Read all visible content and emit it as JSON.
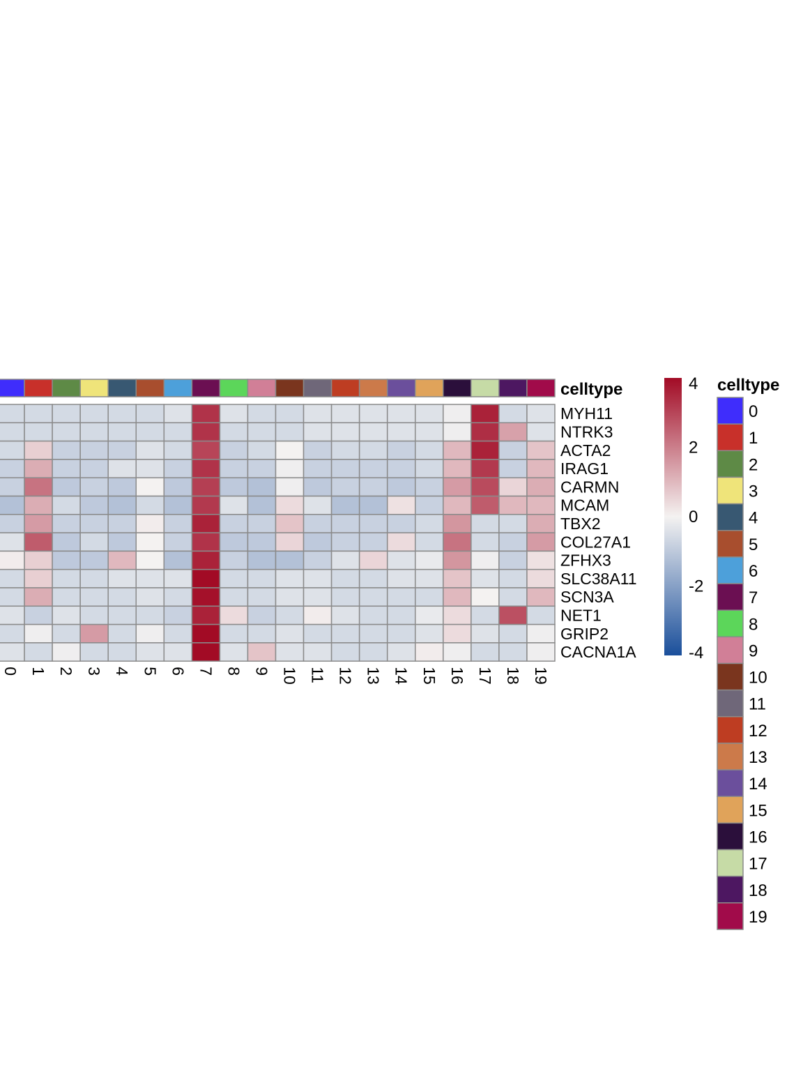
{
  "chart_data": {
    "type": "heatmap",
    "title": "",
    "annotation_label": "celltype",
    "legend_title": "celltype",
    "columns": [
      "0",
      "1",
      "2",
      "3",
      "4",
      "5",
      "6",
      "7",
      "8",
      "9",
      "10",
      "11",
      "12",
      "13",
      "14",
      "15",
      "16",
      "17",
      "18",
      "19"
    ],
    "rows": [
      "MYH11",
      "NTRK3",
      "ACTA2",
      "IRAG1",
      "CARMN",
      "MCAM",
      "TBX2",
      "COL27A1",
      "ZFHX3",
      "SLC38A11",
      "SCN3A",
      "NET1",
      "GRIP2",
      "CACNA1A"
    ],
    "values": [
      [
        -0.6,
        -0.6,
        -0.6,
        -0.6,
        -0.6,
        -0.6,
        -0.4,
        3.3,
        -0.4,
        -0.6,
        -0.6,
        -0.4,
        -0.4,
        -0.4,
        -0.4,
        -0.4,
        -0.1,
        3.6,
        -0.6,
        -0.4
      ],
      [
        -0.6,
        -0.6,
        -0.6,
        -0.6,
        -0.6,
        -0.6,
        -0.6,
        3.3,
        -0.6,
        -0.6,
        -0.6,
        -0.4,
        -0.4,
        -0.4,
        -0.4,
        -0.4,
        -0.1,
        3.4,
        1.4,
        -0.4
      ],
      [
        -0.6,
        0.6,
        -0.8,
        -0.8,
        -0.8,
        -0.4,
        -0.6,
        3.0,
        -0.8,
        -0.6,
        0.0,
        -0.8,
        -0.6,
        -0.6,
        -0.8,
        -0.6,
        1.0,
        3.6,
        -0.8,
        0.8
      ],
      [
        -0.8,
        1.2,
        -0.8,
        -0.8,
        -0.4,
        -0.4,
        -0.8,
        3.3,
        -0.8,
        -0.8,
        -0.1,
        -0.8,
        -0.8,
        -0.8,
        -0.8,
        -0.6,
        1.0,
        3.2,
        -0.8,
        1.0
      ],
      [
        -0.8,
        2.2,
        -1.0,
        -0.8,
        -1.0,
        0.0,
        -1.0,
        3.1,
        -1.0,
        -1.2,
        -0.1,
        -1.0,
        -0.8,
        -0.8,
        -1.0,
        -0.8,
        1.5,
        2.9,
        0.5,
        1.2
      ],
      [
        -1.2,
        1.2,
        -0.6,
        -1.0,
        -1.2,
        -0.6,
        -1.2,
        3.2,
        -0.4,
        -1.2,
        0.4,
        -0.4,
        -1.2,
        -1.2,
        0.3,
        -0.8,
        1.0,
        2.6,
        1.0,
        1.0
      ],
      [
        -0.8,
        1.5,
        -0.8,
        -0.8,
        -0.8,
        0.1,
        -0.8,
        3.6,
        -0.8,
        -0.8,
        0.8,
        -0.8,
        -0.8,
        -0.8,
        -0.8,
        -0.6,
        1.6,
        -0.6,
        -0.6,
        1.2
      ],
      [
        -0.4,
        2.6,
        -1.0,
        -0.6,
        -1.0,
        0.0,
        -0.8,
        3.3,
        -1.0,
        -1.0,
        0.5,
        -1.0,
        -0.8,
        -0.8,
        0.4,
        -0.6,
        2.2,
        -0.6,
        -0.8,
        1.5
      ],
      [
        0.1,
        0.6,
        -1.0,
        -1.0,
        1.0,
        0.0,
        -1.2,
        3.6,
        -0.8,
        -1.2,
        -1.2,
        -0.8,
        -0.4,
        0.5,
        -0.4,
        -0.2,
        1.6,
        -0.1,
        -0.8,
        0.3
      ],
      [
        -0.6,
        0.6,
        -0.6,
        -0.6,
        -0.4,
        -0.4,
        -0.4,
        4.3,
        -0.6,
        -0.6,
        -0.4,
        -0.4,
        -0.6,
        -0.6,
        -0.4,
        -0.4,
        0.8,
        -0.4,
        -0.6,
        0.4
      ],
      [
        -0.6,
        1.2,
        -0.6,
        -0.6,
        -0.6,
        -0.4,
        -0.6,
        3.9,
        -0.6,
        -0.6,
        -0.4,
        -0.4,
        -0.6,
        -0.6,
        -0.6,
        -0.6,
        1.0,
        0.0,
        -0.6,
        1.0
      ],
      [
        -0.4,
        -0.8,
        -0.4,
        -0.6,
        -0.6,
        -0.6,
        -0.8,
        3.6,
        0.4,
        -0.8,
        -0.6,
        0.1,
        -0.4,
        -0.6,
        -0.6,
        -0.2,
        0.4,
        -0.6,
        2.8,
        -0.6
      ],
      [
        -0.6,
        -0.1,
        -0.6,
        1.5,
        -0.6,
        -0.1,
        -0.6,
        4.0,
        -0.6,
        -0.6,
        -0.4,
        -0.6,
        -0.6,
        -0.6,
        -0.6,
        -0.4,
        0.4,
        -0.4,
        -0.6,
        -0.1
      ],
      [
        -0.4,
        -0.6,
        -0.1,
        -0.6,
        -0.6,
        -0.4,
        -0.4,
        4.2,
        -0.4,
        0.8,
        -0.4,
        -0.4,
        -0.6,
        -0.6,
        -0.4,
        0.1,
        -0.1,
        -0.6,
        -0.6,
        -0.1
      ]
    ],
    "colorbar": {
      "min": -4,
      "max": 4,
      "ticks": [
        "4",
        "2",
        "0",
        "-2",
        "-4"
      ],
      "tick_values": [
        4,
        2,
        0,
        -2,
        -4
      ],
      "low_color": "#1a4f9b",
      "mid_color": "#f4f2f1",
      "high_color": "#a20b25"
    },
    "celltype_colors": [
      "#3f2dfc",
      "#c8302a",
      "#5e8a46",
      "#efe47a",
      "#385872",
      "#a84e2e",
      "#4da0da",
      "#6b0f52",
      "#5cd65a",
      "#d17f97",
      "#7a351e",
      "#6f6779",
      "#be3d22",
      "#cc7a4a",
      "#6b4f9c",
      "#e0a35a",
      "#2b0f3b",
      "#c6dba6",
      "#4d1761",
      "#a10b4a"
    ]
  }
}
